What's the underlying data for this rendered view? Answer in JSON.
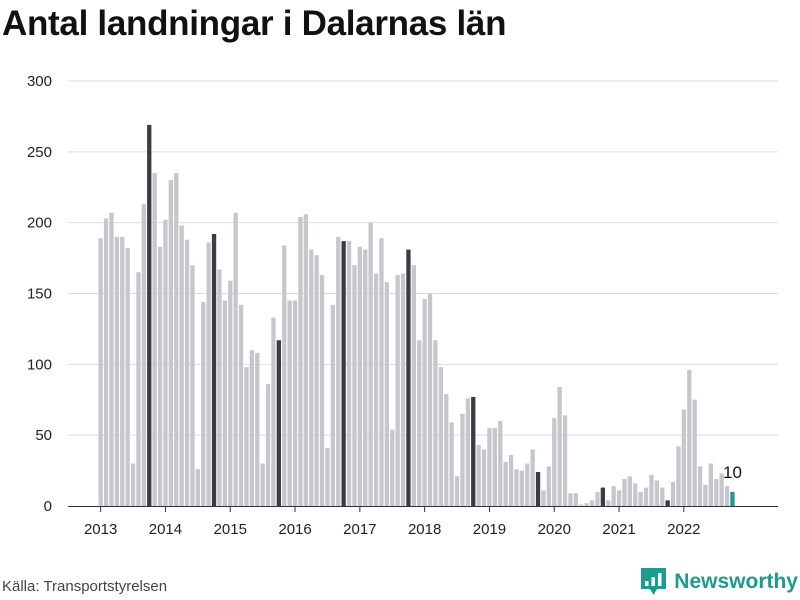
{
  "title": "Antal landningar i Dalarnas län",
  "source": "Källa: Transportstyrelsen",
  "brand": {
    "name": "Newsworthy",
    "icon": "newsworthy-logo-icon",
    "color": "#1e9a8e"
  },
  "colors": {
    "bar": "#c6c6cd",
    "highlight": "#3b3b44",
    "latest": "#1e9a8e",
    "grid": "#dddddd",
    "axis": "#333333"
  },
  "chart_data": {
    "type": "bar",
    "title": "Antal landningar i Dalarnas län",
    "xlabel": "",
    "ylabel": "",
    "ylim": [
      0,
      300
    ],
    "yticks": [
      0,
      50,
      100,
      150,
      200,
      250,
      300
    ],
    "xticks": [
      "2013",
      "2014",
      "2015",
      "2016",
      "2017",
      "2018",
      "2019",
      "2020",
      "2021",
      "2022"
    ],
    "grid": true,
    "start": "2013-01",
    "frequency": "monthly",
    "highlight_month": "October",
    "values": [
      189,
      203,
      207,
      190,
      190,
      182,
      30,
      165,
      213,
      269,
      235,
      183,
      202,
      230,
      235,
      198,
      188,
      170,
      26,
      144,
      186,
      192,
      167,
      145,
      159,
      207,
      142,
      98,
      110,
      108,
      30,
      86,
      133,
      117,
      184,
      145,
      145,
      204,
      206,
      181,
      177,
      163,
      41,
      142,
      190,
      187,
      187,
      170,
      183,
      181,
      200,
      164,
      189,
      158,
      54,
      163,
      164,
      181,
      170,
      117,
      146,
      150,
      117,
      98,
      79,
      59,
      21,
      65,
      76,
      77,
      43,
      40,
      55,
      55,
      60,
      31,
      36,
      26,
      25,
      30,
      40,
      24,
      11,
      28,
      62,
      84,
      64,
      9,
      9,
      1,
      2,
      4,
      10,
      13,
      4,
      14,
      11,
      19,
      21,
      16,
      10,
      13,
      22,
      18,
      13,
      4,
      17,
      42,
      68,
      96,
      75,
      28,
      15,
      30,
      19,
      23,
      14,
      10
    ],
    "annotation": {
      "text": "10",
      "target": "last"
    }
  }
}
